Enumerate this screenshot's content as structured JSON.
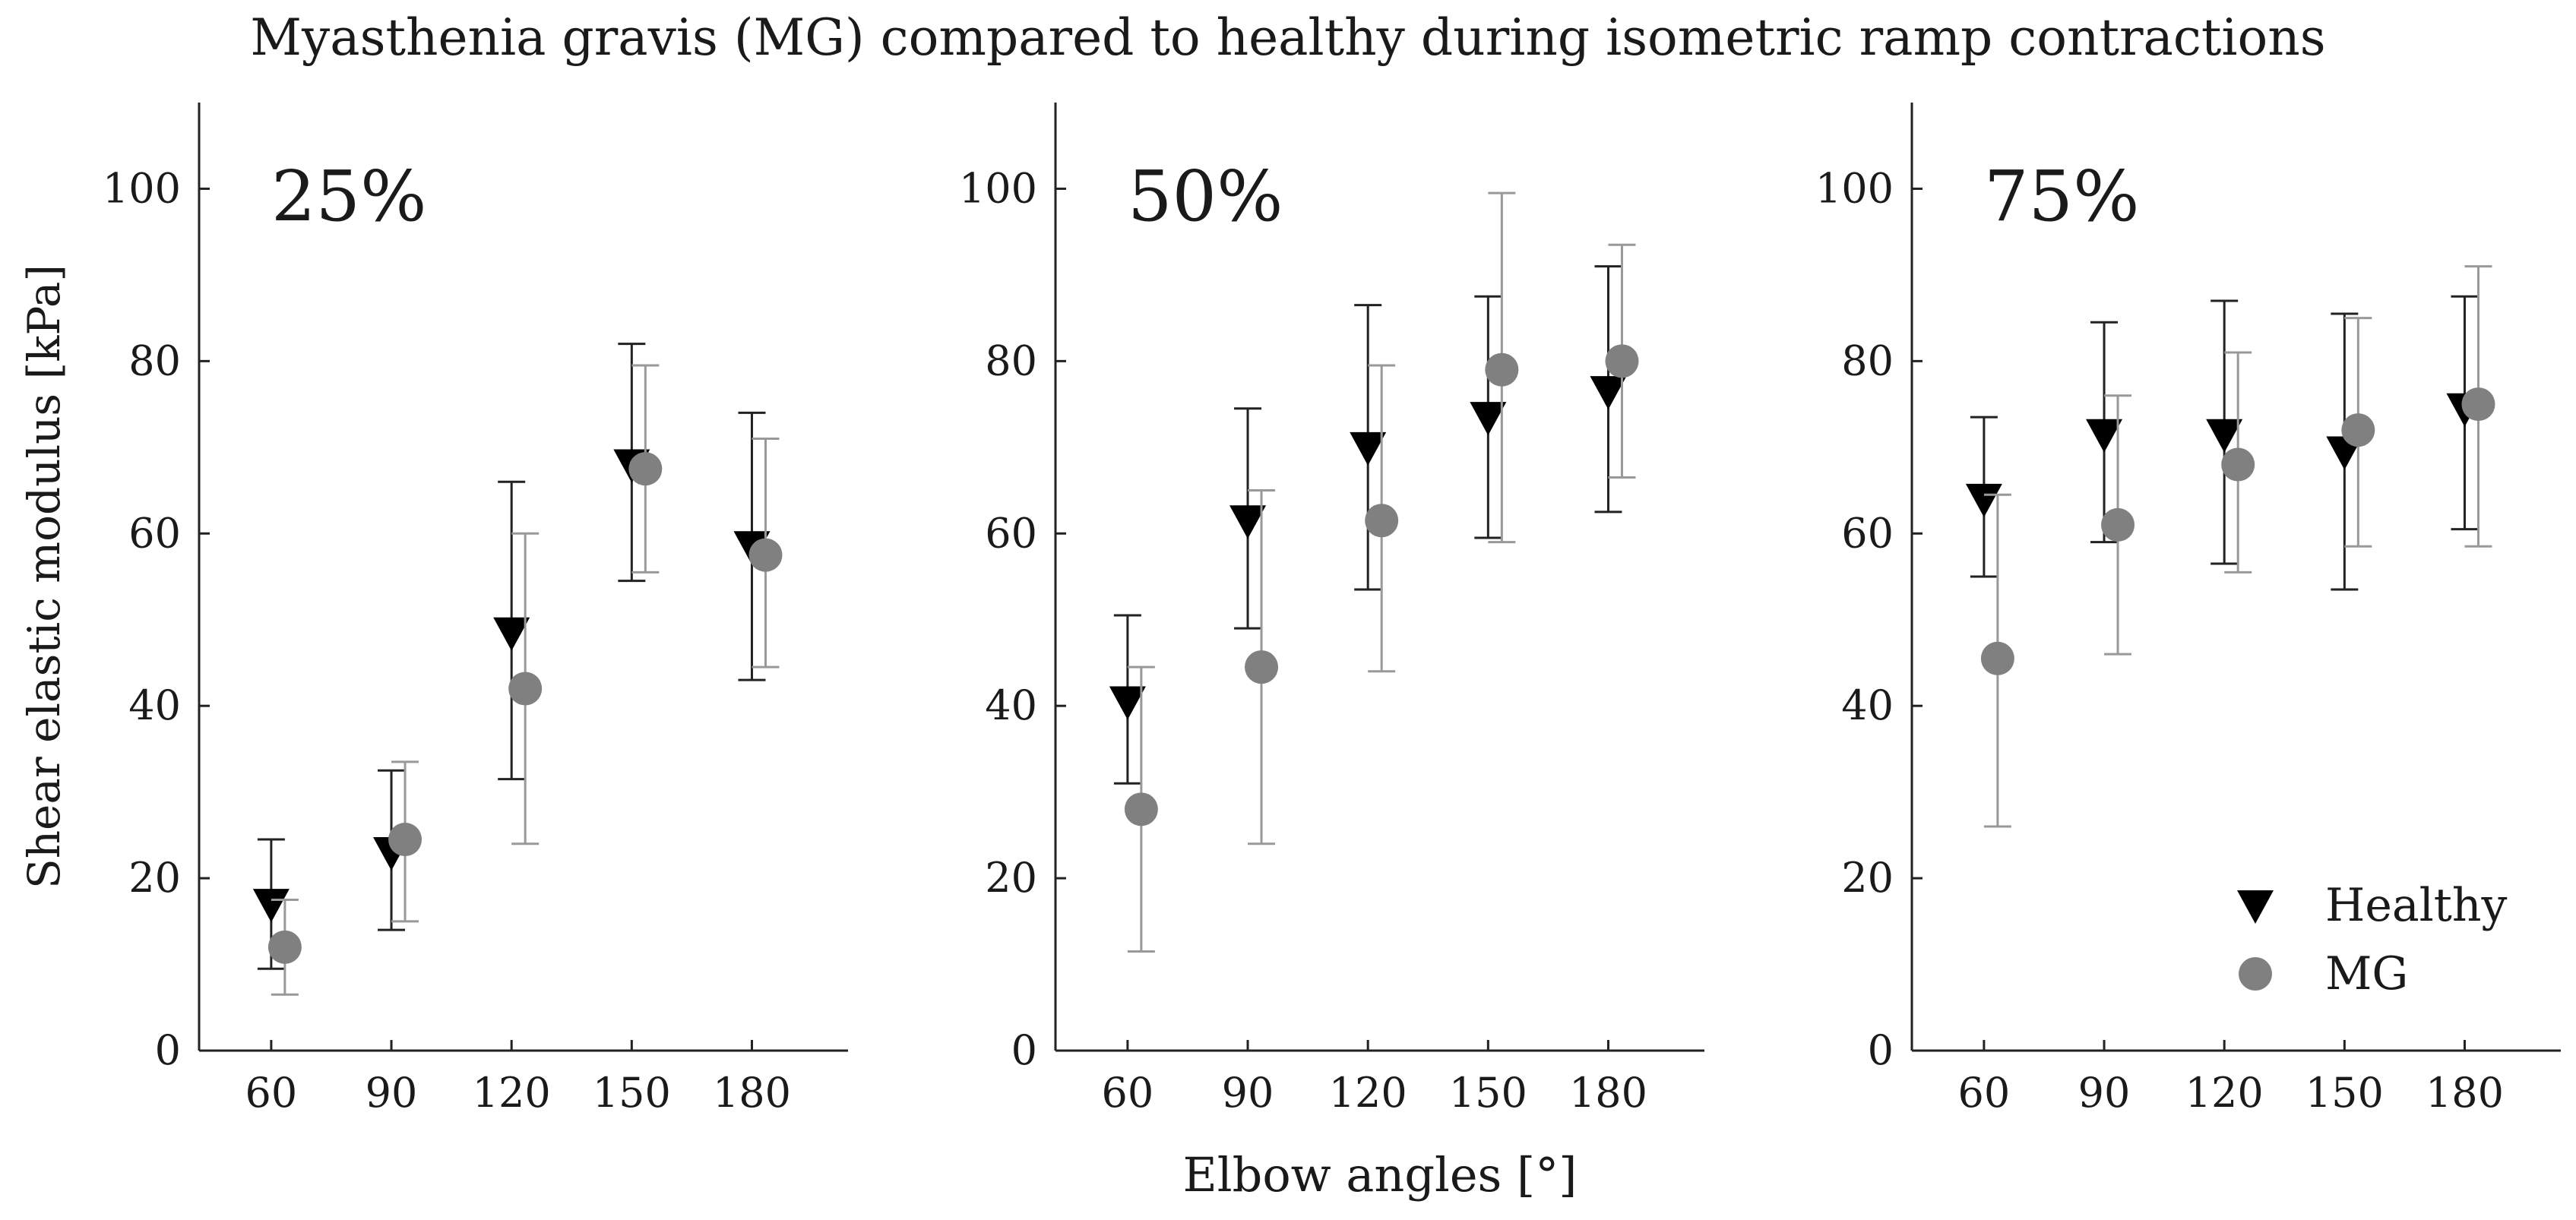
{
  "title": "Myasthenia gravis (MG) compared to healthy during isometric ramp contractions",
  "colors": {
    "healthy": "#000000",
    "mg": "#808080",
    "mg_error": "#999999",
    "axis": "#222222"
  },
  "chart_data": [
    {
      "type": "scatter",
      "panel_label": "25%",
      "categories": [
        "60",
        "90",
        "120",
        "150",
        "180"
      ],
      "ylabel": "Shear elastic modulus [kPa]",
      "xlabel": "",
      "ylim": [
        0,
        110
      ],
      "yticks": [
        0,
        20,
        40,
        60,
        80,
        100
      ],
      "xlim": [
        -0.6,
        4.8
      ],
      "series": [
        {
          "name": "Healthy",
          "marker": "triangle-down",
          "values": [
            17,
            23,
            48.5,
            68,
            58.5
          ],
          "err_low": [
            9.5,
            14,
            31.5,
            54.5,
            43
          ],
          "err_high": [
            24.5,
            32.5,
            66,
            82,
            74
          ]
        },
        {
          "name": "MG",
          "marker": "circle",
          "values": [
            12,
            24.5,
            42,
            67.5,
            57.5
          ],
          "err_low": [
            6.5,
            15,
            24,
            55.5,
            44.5
          ],
          "err_high": [
            17.5,
            33.5,
            60,
            79.5,
            71
          ]
        }
      ]
    },
    {
      "type": "scatter",
      "panel_label": "50%",
      "categories": [
        "60",
        "90",
        "120",
        "150",
        "180"
      ],
      "ylabel": "",
      "xlabel": "Elbow angles [°]",
      "ylim": [
        0,
        110
      ],
      "yticks": [
        0,
        20,
        40,
        60,
        80,
        100
      ],
      "xlim": [
        -0.6,
        4.8
      ],
      "series": [
        {
          "name": "Healthy",
          "marker": "triangle-down",
          "values": [
            40.5,
            61.5,
            70,
            73.5,
            76.5
          ],
          "err_low": [
            31,
            49,
            53.5,
            59.5,
            62.5
          ],
          "err_high": [
            50.5,
            74.5,
            86.5,
            87.5,
            91
          ]
        },
        {
          "name": "MG",
          "marker": "circle",
          "values": [
            28,
            44.5,
            61.5,
            79,
            80
          ],
          "err_low": [
            11.5,
            24,
            44,
            59,
            66.5
          ],
          "err_high": [
            44.5,
            65,
            79.5,
            99.5,
            93.5
          ]
        }
      ]
    },
    {
      "type": "scatter",
      "panel_label": "75%",
      "categories": [
        "60",
        "90",
        "120",
        "150",
        "180"
      ],
      "ylabel": "",
      "xlabel": "",
      "ylim": [
        0,
        110
      ],
      "yticks": [
        0,
        20,
        40,
        60,
        80,
        100
      ],
      "xlim": [
        -0.6,
        4.8
      ],
      "legend": {
        "location": "bottom-right",
        "entries": [
          "Healthy",
          "MG"
        ]
      },
      "series": [
        {
          "name": "Healthy",
          "marker": "triangle-down",
          "values": [
            64,
            71.5,
            71.5,
            69.5,
            74.5
          ],
          "err_low": [
            55,
            59,
            56.5,
            53.5,
            60.5
          ],
          "err_high": [
            73.5,
            84.5,
            87,
            85.5,
            87.5
          ]
        },
        {
          "name": "MG",
          "marker": "circle",
          "values": [
            45.5,
            61,
            68,
            72,
            75
          ],
          "err_low": [
            26,
            46,
            55.5,
            58.5,
            58.5
          ],
          "err_high": [
            64.5,
            76,
            81,
            85,
            91
          ]
        }
      ]
    }
  ]
}
